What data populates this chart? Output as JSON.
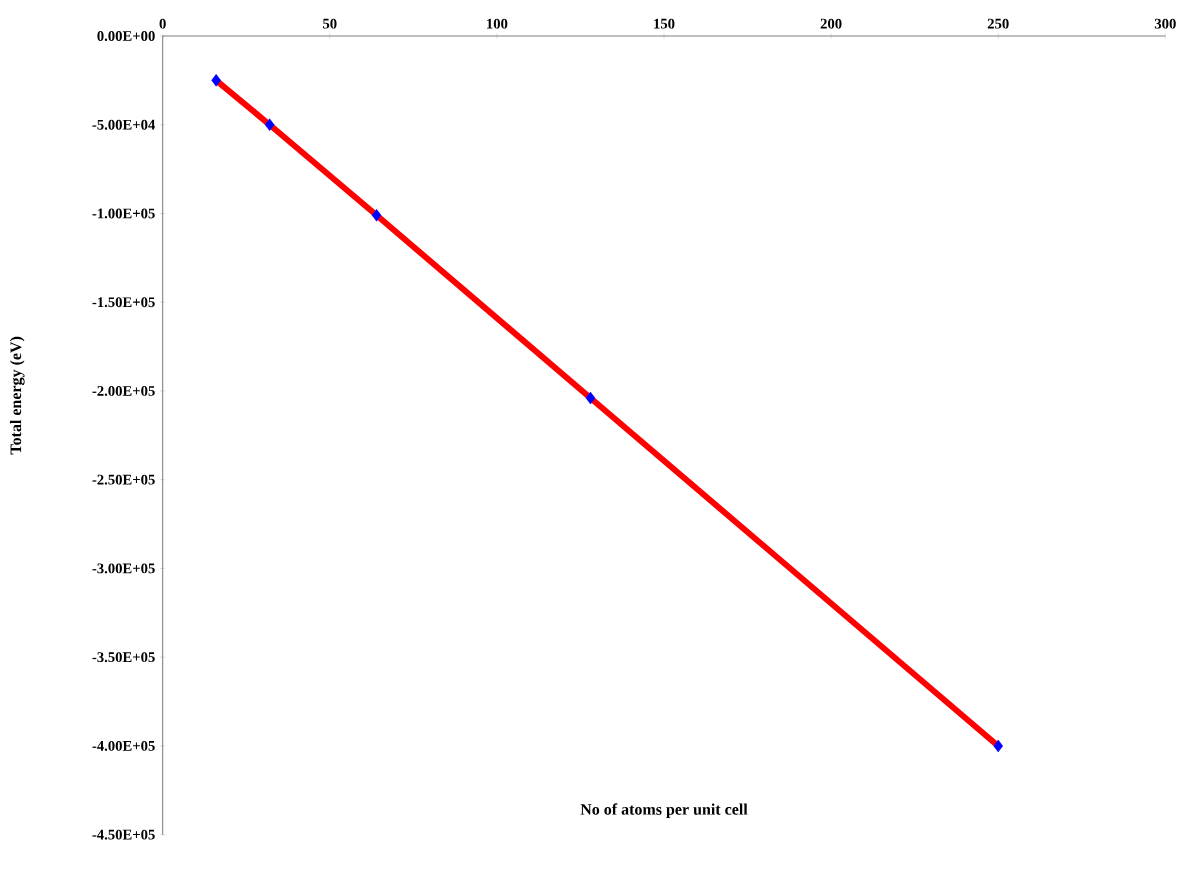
{
  "chart_data": {
    "type": "line",
    "xlabel": "No of atoms per unit cell",
    "ylabel": "Total  energy (eV)",
    "x": [
      16,
      32,
      64,
      128,
      250
    ],
    "series": [
      {
        "color": "#ff0000",
        "values": [
          -25000,
          -50000,
          -101000,
          -204000,
          -400000
        ]
      }
    ],
    "marker": "diamond",
    "line_style": "solid",
    "xlim": [
      0,
      300
    ],
    "xticks": [
      0,
      50,
      100,
      150,
      200,
      250,
      300
    ],
    "ylim": [
      -450000,
      0
    ],
    "yticks": [
      {
        "value": 0,
        "label": "0.00E+00"
      },
      {
        "value": -50000,
        "label": "-5.00E+04"
      },
      {
        "value": -100000,
        "label": "-1.00E+05"
      },
      {
        "value": -150000,
        "label": "-1.50E+05"
      },
      {
        "value": -200000,
        "label": "-2.00E+05"
      },
      {
        "value": -250000,
        "label": "-2.50E+05"
      },
      {
        "value": -300000,
        "label": "-3.00E+05"
      },
      {
        "value": -350000,
        "label": "-3.50E+05"
      },
      {
        "value": -400000,
        "label": "-4.00E+05"
      },
      {
        "value": -450000,
        "label": "-4.50E+05"
      }
    ]
  }
}
